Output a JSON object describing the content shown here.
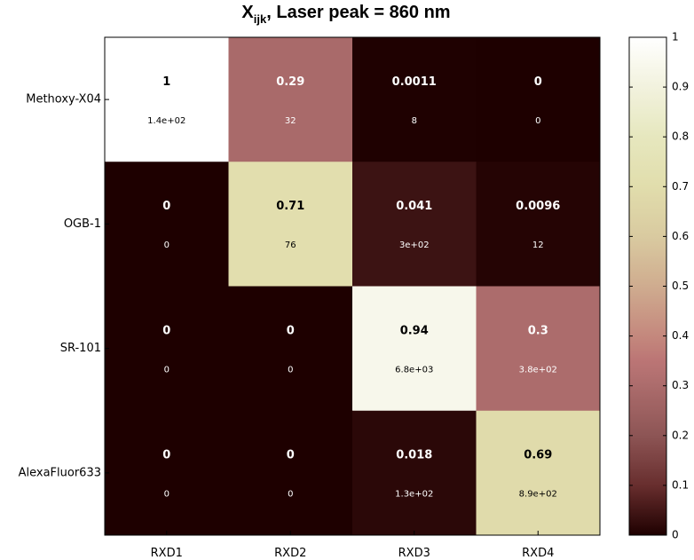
{
  "chart_data": {
    "type": "heatmap",
    "title": {
      "main": "X",
      "subscript": "ijk",
      "rest": ", Laser peak = 860 nm"
    },
    "rows": [
      "Methoxy-X04",
      "OGB-1",
      "SR-101",
      "AlexaFluor633"
    ],
    "columns": [
      "RXD1",
      "RXD2",
      "RXD3",
      "RXD4"
    ],
    "values": [
      [
        1,
        0.29,
        0.0011,
        0
      ],
      [
        0,
        0.71,
        0.041,
        0.0096
      ],
      [
        0,
        0,
        0.94,
        0.3
      ],
      [
        0,
        0,
        0.018,
        0.69
      ]
    ],
    "labels": [
      [
        "1",
        "0.29",
        "0.0011",
        "0"
      ],
      [
        "0",
        "0.71",
        "0.041",
        "0.0096"
      ],
      [
        "0",
        "0",
        "0.94",
        "0.3"
      ],
      [
        "0",
        "0",
        "0.018",
        "0.69"
      ]
    ],
    "sublabels": [
      [
        "1.4e+02",
        "32",
        "8",
        "0"
      ],
      [
        "0",
        "76",
        "3e+02",
        "12"
      ],
      [
        "0",
        "0",
        "6.8e+03",
        "3.8e+02"
      ],
      [
        "0",
        "0",
        "1.3e+02",
        "8.9e+02"
      ]
    ],
    "colorbar": {
      "min": 0,
      "max": 1,
      "ticks": [
        0,
        0.1,
        0.2,
        0.3,
        0.4,
        0.5,
        0.6,
        0.7,
        0.8,
        0.9,
        1
      ],
      "tick_labels": [
        "0",
        "0.1",
        "0.2",
        "0.3",
        "0.4",
        "0.5",
        "0.6",
        "0.7",
        "0.8",
        "0.9",
        "1"
      ]
    },
    "colormap": "pink",
    "grid": false
  }
}
